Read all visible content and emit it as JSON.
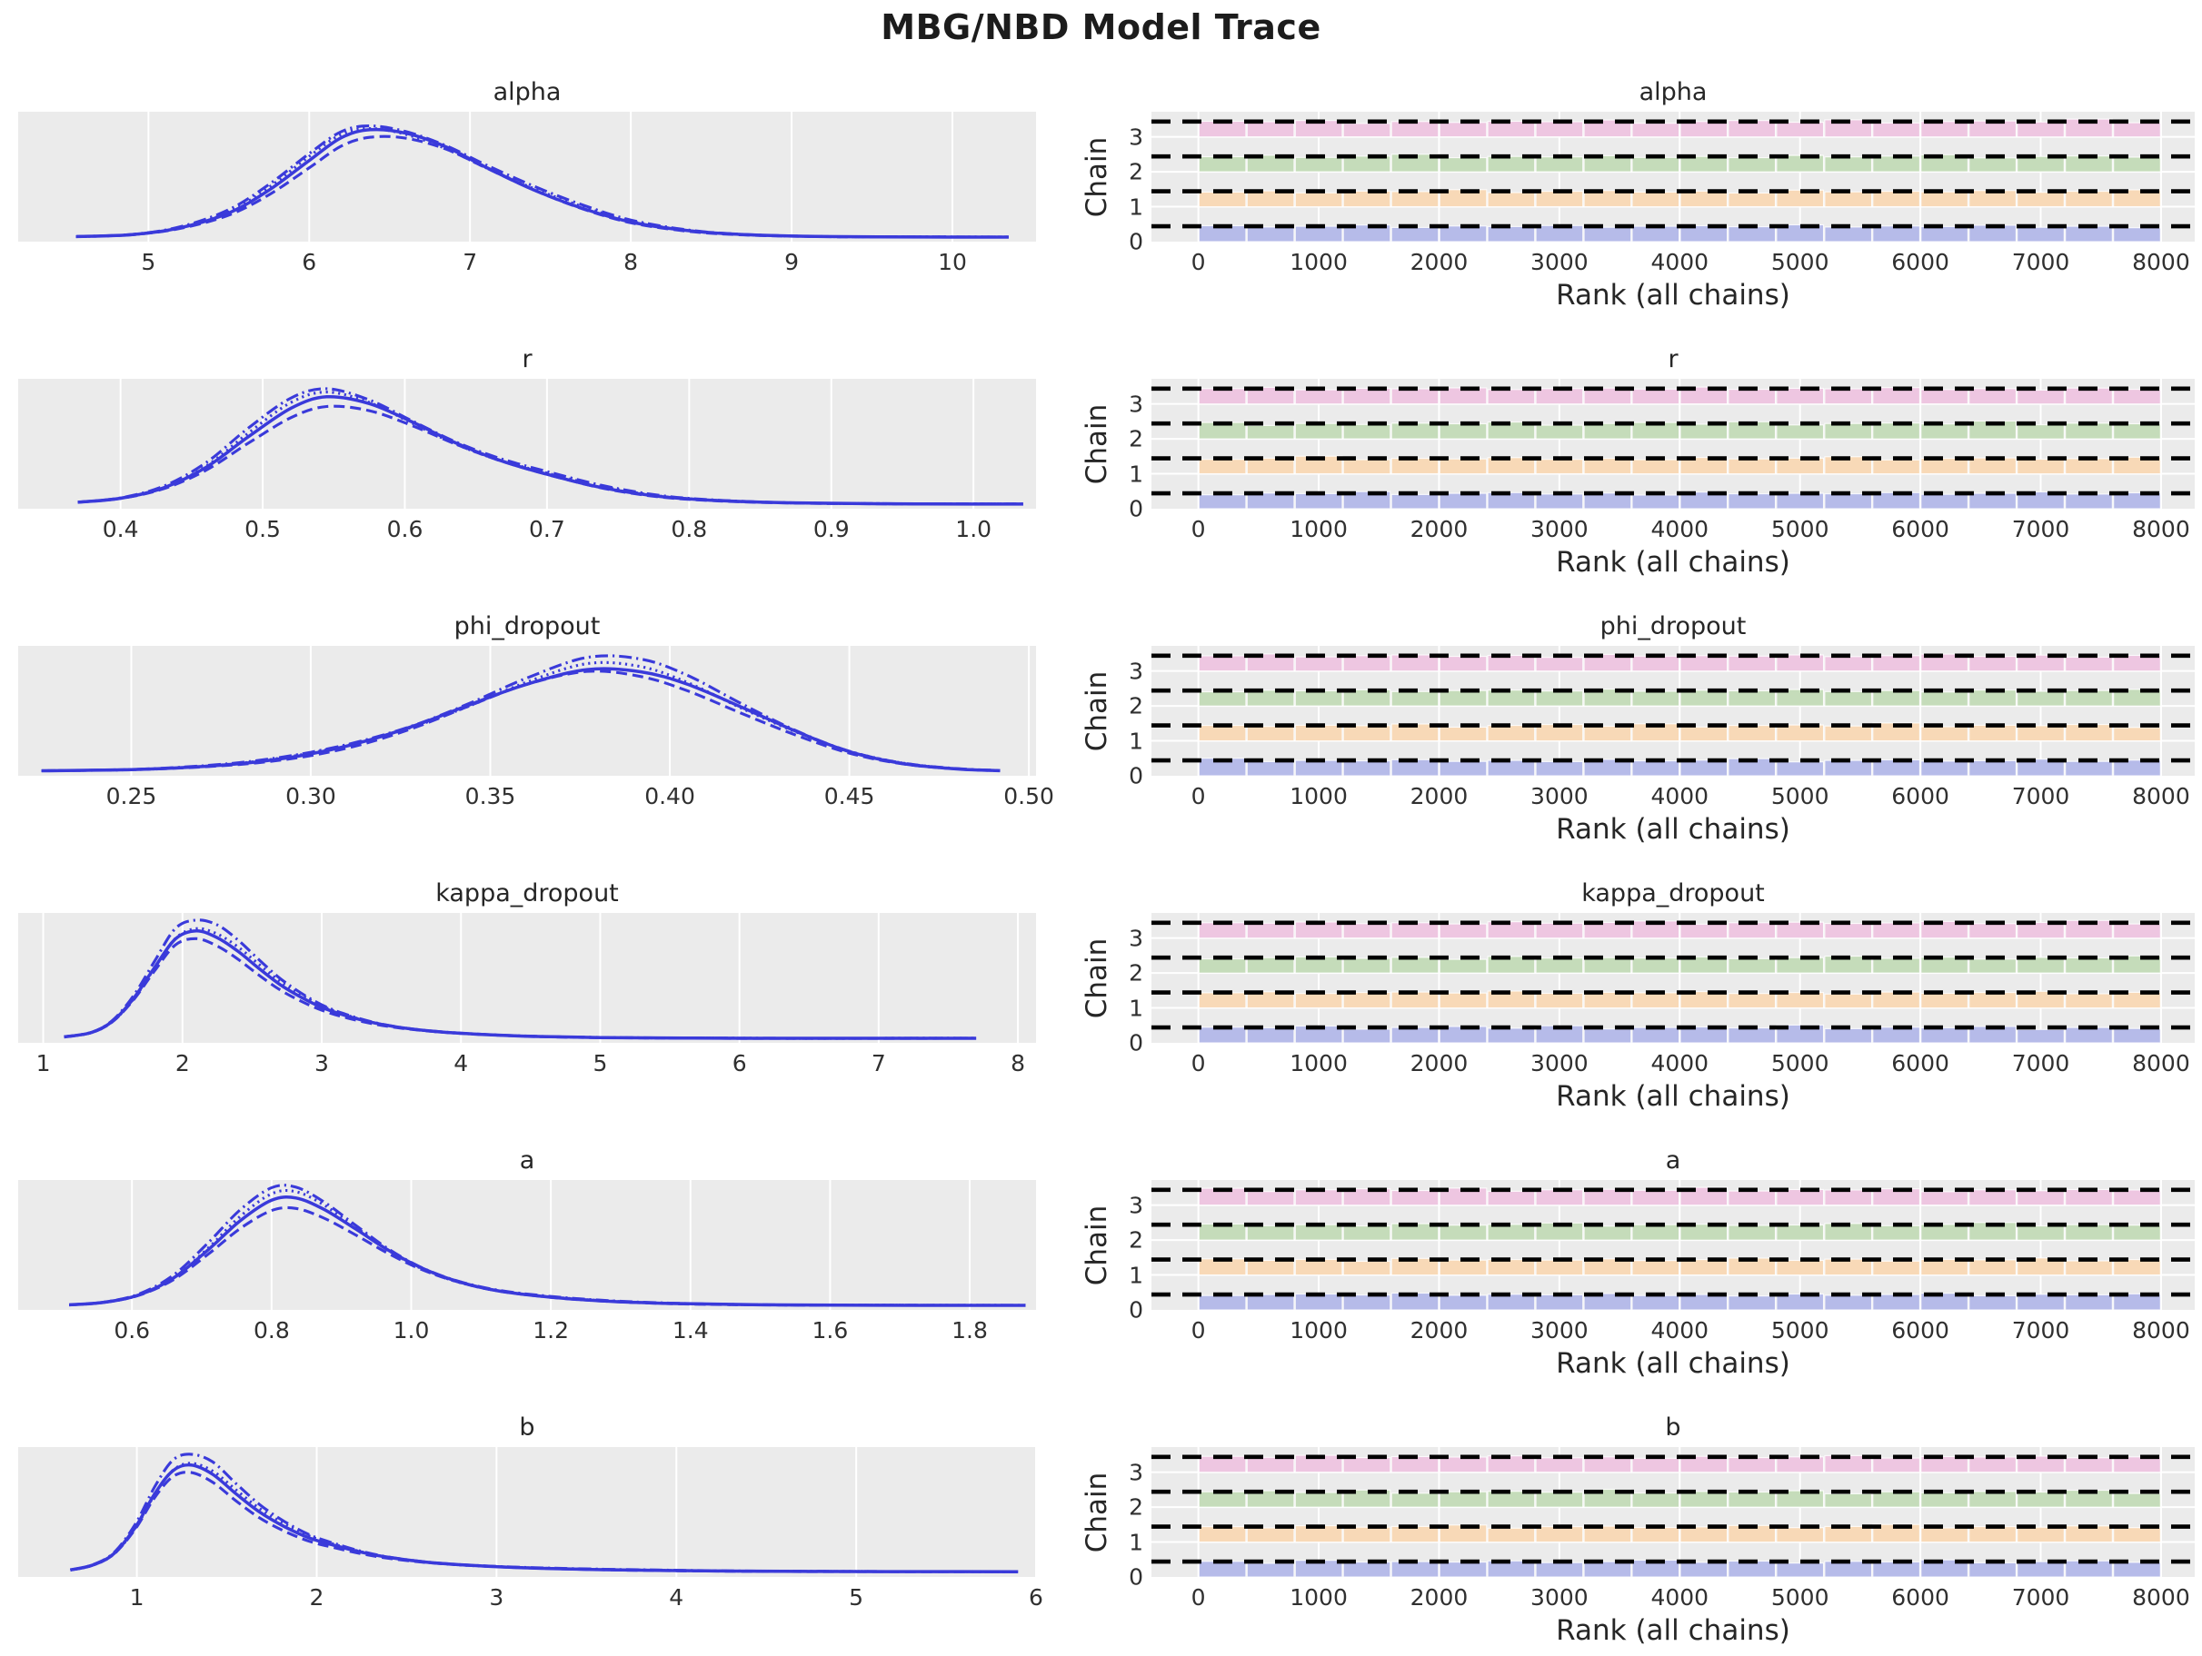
{
  "title": "MBG/NBD Model Trace",
  "styling": {
    "plot_bg": "#ebebeb",
    "grid_color": "#ffffff",
    "kde_line_color": "#3a3ada",
    "rank_dash_color": "#000000",
    "text_color": "#262626",
    "chain_colors": [
      "#b6bbe9",
      "#f8d9b7",
      "#c5dcba",
      "#eec6e1"
    ],
    "chain_linestyles": [
      "solid",
      "dashed",
      "dotted",
      "dashdot"
    ]
  },
  "chains": {
    "count": 4,
    "labels": [
      "0",
      "1",
      "2",
      "3"
    ]
  },
  "chart_data": [
    {
      "param": "alpha",
      "kde": {
        "type": "line",
        "title": "alpha",
        "xlim": [
          4.19,
          10.52
        ],
        "tick_values": [
          5,
          6,
          7,
          8,
          9,
          10
        ],
        "tick_labels": [
          "5",
          "6",
          "7",
          "8",
          "9",
          "10"
        ],
        "peak_x": 6.38,
        "curve": [
          [
            4.55,
            0.012
          ],
          [
            4.9,
            0.03
          ],
          [
            5.2,
            0.09
          ],
          [
            5.5,
            0.22
          ],
          [
            5.75,
            0.42
          ],
          [
            6.0,
            0.68
          ],
          [
            6.2,
            0.88
          ],
          [
            6.38,
            0.95
          ],
          [
            6.6,
            0.92
          ],
          [
            6.85,
            0.8
          ],
          [
            7.1,
            0.62
          ],
          [
            7.4,
            0.42
          ],
          [
            7.7,
            0.26
          ],
          [
            8.0,
            0.14
          ],
          [
            8.35,
            0.065
          ],
          [
            8.7,
            0.03
          ],
          [
            9.2,
            0.013
          ],
          [
            9.8,
            0.009
          ],
          [
            10.35,
            0.008
          ]
        ]
      },
      "rank": {
        "type": "bar",
        "title": "alpha",
        "xlabel": "Rank (all chains)",
        "ylabel": "Chain",
        "xlim": [
          -390,
          8280
        ],
        "rank_range": [
          0,
          8000
        ],
        "bins": 20,
        "tick_values": [
          0,
          1000,
          2000,
          3000,
          4000,
          5000,
          6000,
          7000,
          8000
        ],
        "tick_labels": [
          "0",
          "1000",
          "2000",
          "3000",
          "4000",
          "5000",
          "6000",
          "7000",
          "8000"
        ],
        "ytick_values": [
          0,
          1,
          2,
          3
        ],
        "ytick_labels": [
          "0",
          "1",
          "2",
          "3"
        ],
        "uniform_reference": 1.0
      }
    },
    {
      "param": "r",
      "kde": {
        "type": "line",
        "title": "r",
        "xlim": [
          0.328,
          1.044
        ],
        "tick_values": [
          0.4,
          0.5,
          0.6,
          0.7,
          0.8,
          0.9,
          1.0
        ],
        "tick_labels": [
          "0.4",
          "0.5",
          "0.6",
          "0.7",
          "0.8",
          "0.9",
          "1.0"
        ],
        "peak_x": 0.545,
        "curve": [
          [
            0.37,
            0.025
          ],
          [
            0.4,
            0.06
          ],
          [
            0.43,
            0.15
          ],
          [
            0.46,
            0.33
          ],
          [
            0.49,
            0.6
          ],
          [
            0.52,
            0.85
          ],
          [
            0.545,
            0.95
          ],
          [
            0.575,
            0.89
          ],
          [
            0.605,
            0.73
          ],
          [
            0.635,
            0.55
          ],
          [
            0.665,
            0.4
          ],
          [
            0.7,
            0.27
          ],
          [
            0.74,
            0.15
          ],
          [
            0.78,
            0.075
          ],
          [
            0.82,
            0.04
          ],
          [
            0.87,
            0.02
          ],
          [
            0.93,
            0.012
          ],
          [
            1.0,
            0.009
          ],
          [
            1.035,
            0.009
          ]
        ]
      },
      "rank": {
        "type": "bar",
        "title": "r",
        "xlabel": "Rank (all chains)",
        "ylabel": "Chain",
        "xlim": [
          -390,
          8280
        ],
        "rank_range": [
          0,
          8000
        ],
        "bins": 20,
        "tick_values": [
          0,
          1000,
          2000,
          3000,
          4000,
          5000,
          6000,
          7000,
          8000
        ],
        "tick_labels": [
          "0",
          "1000",
          "2000",
          "3000",
          "4000",
          "5000",
          "6000",
          "7000",
          "8000"
        ],
        "ytick_values": [
          0,
          1,
          2,
          3
        ],
        "ytick_labels": [
          "0",
          "1",
          "2",
          "3"
        ],
        "uniform_reference": 1.0
      }
    },
    {
      "param": "phi_dropout",
      "kde": {
        "type": "line",
        "title": "phi_dropout",
        "xlim": [
          0.2185,
          0.502
        ],
        "tick_values": [
          0.25,
          0.3,
          0.35,
          0.4,
          0.45,
          0.5
        ],
        "tick_labels": [
          "0.25",
          "0.30",
          "0.35",
          "0.40",
          "0.45",
          "0.50"
        ],
        "peak_x": 0.377,
        "curve": [
          [
            0.225,
            0.012
          ],
          [
            0.25,
            0.022
          ],
          [
            0.27,
            0.05
          ],
          [
            0.285,
            0.09
          ],
          [
            0.3,
            0.16
          ],
          [
            0.315,
            0.27
          ],
          [
            0.33,
            0.42
          ],
          [
            0.345,
            0.6
          ],
          [
            0.36,
            0.77
          ],
          [
            0.377,
            0.9
          ],
          [
            0.392,
            0.88
          ],
          [
            0.405,
            0.77
          ],
          [
            0.42,
            0.57
          ],
          [
            0.435,
            0.36
          ],
          [
            0.45,
            0.18
          ],
          [
            0.465,
            0.075
          ],
          [
            0.48,
            0.028
          ],
          [
            0.492,
            0.013
          ]
        ]
      },
      "rank": {
        "type": "bar",
        "title": "phi_dropout",
        "xlabel": "Rank (all chains)",
        "ylabel": "Chain",
        "xlim": [
          -390,
          8280
        ],
        "rank_range": [
          0,
          8000
        ],
        "bins": 20,
        "tick_values": [
          0,
          1000,
          2000,
          3000,
          4000,
          5000,
          6000,
          7000,
          8000
        ],
        "tick_labels": [
          "0",
          "1000",
          "2000",
          "3000",
          "4000",
          "5000",
          "6000",
          "7000",
          "8000"
        ],
        "ytick_values": [
          0,
          1,
          2,
          3
        ],
        "ytick_labels": [
          "0",
          "1",
          "2",
          "3"
        ],
        "uniform_reference": 1.0
      }
    },
    {
      "param": "kappa_dropout",
      "kde": {
        "type": "line",
        "title": "kappa_dropout",
        "xlim": [
          0.82,
          8.13
        ],
        "tick_values": [
          1,
          2,
          3,
          4,
          5,
          6,
          7,
          8
        ],
        "tick_labels": [
          "1",
          "2",
          "3",
          "4",
          "5",
          "6",
          "7",
          "8"
        ],
        "peak_x": 2.1,
        "curve": [
          [
            1.15,
            0.02
          ],
          [
            1.35,
            0.06
          ],
          [
            1.5,
            0.16
          ],
          [
            1.65,
            0.36
          ],
          [
            1.8,
            0.63
          ],
          [
            1.95,
            0.88
          ],
          [
            2.1,
            0.95
          ],
          [
            2.25,
            0.89
          ],
          [
            2.4,
            0.77
          ],
          [
            2.55,
            0.62
          ],
          [
            2.7,
            0.48
          ],
          [
            2.85,
            0.37
          ],
          [
            3.0,
            0.28
          ],
          [
            3.15,
            0.215
          ],
          [
            3.35,
            0.15
          ],
          [
            3.55,
            0.105
          ],
          [
            3.8,
            0.07
          ],
          [
            4.1,
            0.045
          ],
          [
            4.5,
            0.025
          ],
          [
            5.0,
            0.014
          ],
          [
            5.6,
            0.01
          ],
          [
            6.3,
            0.008
          ],
          [
            7.0,
            0.008
          ],
          [
            7.7,
            0.008
          ]
        ]
      },
      "rank": {
        "type": "bar",
        "title": "kappa_dropout",
        "xlabel": "Rank (all chains)",
        "ylabel": "Chain",
        "xlim": [
          -390,
          8280
        ],
        "rank_range": [
          0,
          8000
        ],
        "bins": 20,
        "tick_values": [
          0,
          1000,
          2000,
          3000,
          4000,
          5000,
          6000,
          7000,
          8000
        ],
        "tick_labels": [
          "0",
          "1000",
          "2000",
          "3000",
          "4000",
          "5000",
          "6000",
          "7000",
          "8000"
        ],
        "ytick_values": [
          0,
          1,
          2,
          3
        ],
        "ytick_labels": [
          "0",
          "1",
          "2",
          "3"
        ],
        "uniform_reference": 1.0
      }
    },
    {
      "param": "a",
      "kde": {
        "type": "line",
        "title": "a",
        "xlim": [
          0.437,
          1.895
        ],
        "tick_values": [
          0.6,
          0.8,
          1.0,
          1.2,
          1.4,
          1.6,
          1.8
        ],
        "tick_labels": [
          "0.6",
          "0.8",
          "1.0",
          "1.2",
          "1.4",
          "1.6",
          "1.8"
        ],
        "peak_x": 0.81,
        "curve": [
          [
            0.51,
            0.012
          ],
          [
            0.56,
            0.035
          ],
          [
            0.61,
            0.1
          ],
          [
            0.66,
            0.25
          ],
          [
            0.71,
            0.5
          ],
          [
            0.755,
            0.75
          ],
          [
            0.8,
            0.93
          ],
          [
            0.835,
            0.95
          ],
          [
            0.875,
            0.85
          ],
          [
            0.92,
            0.68
          ],
          [
            0.965,
            0.5
          ],
          [
            1.01,
            0.35
          ],
          [
            1.06,
            0.23
          ],
          [
            1.12,
            0.14
          ],
          [
            1.19,
            0.085
          ],
          [
            1.27,
            0.048
          ],
          [
            1.37,
            0.025
          ],
          [
            1.5,
            0.013
          ],
          [
            1.66,
            0.009
          ],
          [
            1.88,
            0.008
          ]
        ]
      },
      "rank": {
        "type": "bar",
        "title": "a",
        "xlabel": "Rank (all chains)",
        "ylabel": "Chain",
        "xlim": [
          -390,
          8280
        ],
        "rank_range": [
          0,
          8000
        ],
        "bins": 20,
        "tick_values": [
          0,
          1000,
          2000,
          3000,
          4000,
          5000,
          6000,
          7000,
          8000
        ],
        "tick_labels": [
          "0",
          "1000",
          "2000",
          "3000",
          "4000",
          "5000",
          "6000",
          "7000",
          "8000"
        ],
        "ytick_values": [
          0,
          1,
          2,
          3
        ],
        "ytick_labels": [
          "0",
          "1",
          "2",
          "3"
        ],
        "uniform_reference": 1.0
      }
    },
    {
      "param": "b",
      "kde": {
        "type": "line",
        "title": "b",
        "xlim": [
          0.34,
          6.0
        ],
        "tick_values": [
          1,
          2,
          3,
          4,
          5,
          6
        ],
        "tick_labels": [
          "1",
          "2",
          "3",
          "4",
          "5",
          "6"
        ],
        "peak_x": 1.3,
        "curve": [
          [
            0.63,
            0.03
          ],
          [
            0.75,
            0.07
          ],
          [
            0.87,
            0.17
          ],
          [
            0.99,
            0.4
          ],
          [
            1.1,
            0.7
          ],
          [
            1.2,
            0.9
          ],
          [
            1.3,
            0.95
          ],
          [
            1.42,
            0.87
          ],
          [
            1.55,
            0.7
          ],
          [
            1.68,
            0.54
          ],
          [
            1.82,
            0.41
          ],
          [
            1.96,
            0.31
          ],
          [
            2.1,
            0.245
          ],
          [
            2.25,
            0.185
          ],
          [
            2.4,
            0.14
          ],
          [
            2.6,
            0.1
          ],
          [
            2.8,
            0.075
          ],
          [
            3.05,
            0.055
          ],
          [
            3.3,
            0.042
          ],
          [
            3.6,
            0.032
          ],
          [
            3.9,
            0.026
          ],
          [
            4.3,
            0.02
          ],
          [
            4.8,
            0.017
          ],
          [
            5.35,
            0.015
          ],
          [
            5.9,
            0.014
          ]
        ]
      },
      "rank": {
        "type": "bar",
        "title": "b",
        "xlabel": "Rank (all chains)",
        "ylabel": "Chain",
        "xlim": [
          -390,
          8280
        ],
        "rank_range": [
          0,
          8000
        ],
        "bins": 20,
        "tick_values": [
          0,
          1000,
          2000,
          3000,
          4000,
          5000,
          6000,
          7000,
          8000
        ],
        "tick_labels": [
          "0",
          "1000",
          "2000",
          "3000",
          "4000",
          "5000",
          "6000",
          "7000",
          "8000"
        ],
        "ytick_values": [
          0,
          1,
          2,
          3
        ],
        "ytick_labels": [
          "0",
          "1",
          "2",
          "3"
        ],
        "uniform_reference": 1.0
      }
    }
  ],
  "rank_height_patterns": [
    [
      1.02,
      0.97,
      1.0,
      1.05,
      0.95,
      1.01,
      0.99,
      1.03,
      0.96,
      1.0,
      1.02,
      0.98,
      1.06,
      0.97,
      1.01,
      0.99,
      1.04,
      0.96,
      1.0,
      0.94
    ],
    [
      0.98,
      1.03,
      0.96,
      1.0,
      1.06,
      0.97,
      1.02,
      0.94,
      1.01,
      0.99,
      1.07,
      0.95,
      1.0,
      1.03,
      0.97,
      1.01,
      0.93,
      1.05,
      0.98,
      1.0
    ],
    [
      1.0,
      0.95,
      1.04,
      0.98,
      1.01,
      1.07,
      0.94,
      1.0,
      1.02,
      0.97,
      0.99,
      1.05,
      0.96,
      1.01,
      1.09,
      0.95,
      1.0,
      0.98,
      1.03,
      0.96
    ],
    [
      0.96,
      1.01,
      0.99,
      1.06,
      0.93,
      1.0,
      1.04,
      0.97,
      1.07,
      0.94,
      1.0,
      1.02,
      0.98,
      1.1,
      0.95,
      1.01,
      0.99,
      1.04,
      0.92,
      1.0
    ]
  ]
}
